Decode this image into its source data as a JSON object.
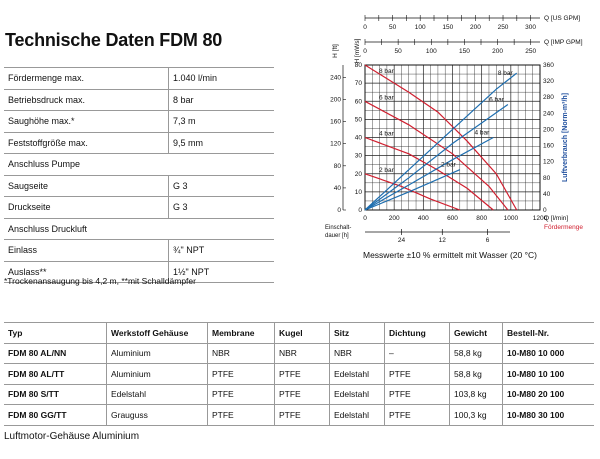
{
  "title": "Technische Daten FDM 80",
  "specs": [
    {
      "label": "Fördermenge max.",
      "value": "1.040 l/min"
    },
    {
      "label": "Betriebsdruck max.",
      "value": "8 bar"
    },
    {
      "label": "Saughöhe max.*",
      "value": "7,3 m"
    },
    {
      "label": "Feststoffgröße max.",
      "value": "9,5 mm"
    },
    {
      "label": "Anschluss Pumpe",
      "value": ""
    },
    {
      "label": "Saugseite",
      "value": "G 3"
    },
    {
      "label": "Druckseite",
      "value": "G 3"
    },
    {
      "label": "Anschluss Druckluft",
      "value": ""
    },
    {
      "label": "Einlass",
      "value": "¾\" NPT"
    },
    {
      "label": "Auslass**",
      "value": "1½\" NPT"
    }
  ],
  "footnote": "*Trockenansaugung bis 4,2 m, **mit Schalldämpfer",
  "types_table": {
    "headers": [
      "Typ",
      "Werkstoff Gehäuse",
      "Membrane",
      "Kugel",
      "Sitz",
      "Dichtung",
      "Gewicht",
      "Bestell-Nr."
    ],
    "rows": [
      [
        "FDM 80 AL/NN",
        "Aluminium",
        "NBR",
        "NBR",
        "NBR",
        "–",
        "58,8 kg",
        "10-M80 10 000"
      ],
      [
        "FDM 80 AL/TT",
        "Aluminium",
        "PTFE",
        "PTFE",
        "Edelstahl",
        "PTFE",
        "58,8 kg",
        "10-M80 10 100"
      ],
      [
        "FDM 80 S/TT",
        "Edelstahl",
        "PTFE",
        "PTFE",
        "Edelstahl",
        "PTFE",
        "103,8 kg",
        "10-M80 20 100"
      ],
      [
        "FDM 80 GG/TT",
        "Grauguss",
        "PTFE",
        "PTFE",
        "Edelstahl",
        "PTFE",
        "100,3 kg",
        "10-M80 30 100"
      ]
    ]
  },
  "footer": "Luftmotor-Gehäuse Aluminium",
  "chart_data": {
    "type": "line",
    "caption": "Messwerte ±10 % ermittelt mit Wasser (20 °C)",
    "x_label": "Q [l/min]",
    "x_unit_label": "Fördermenge",
    "x_range": [
      0,
      1200
    ],
    "x_ticks": [
      "0",
      "200",
      "400",
      "600",
      "800",
      "1000",
      "1200"
    ],
    "y_left_labels": [
      "H [ft]",
      "H [mWs]"
    ],
    "y_left_range": [
      0,
      80
    ],
    "y_left_ticks": [
      "0",
      "10",
      "20",
      "30",
      "40",
      "50",
      "60",
      "70",
      "80"
    ],
    "y_ft_ticks": [
      "0",
      "40",
      "80",
      "120",
      "160",
      "200",
      "240"
    ],
    "y_right_label": "Luftverbrauch [Norm-m³/h]",
    "y_right_range": [
      0,
      360
    ],
    "y_right_ticks": [
      "0",
      "40",
      "80",
      "120",
      "160",
      "200",
      "240",
      "280",
      "320",
      "360"
    ],
    "top_axes": [
      {
        "label": "Q [US GPM]",
        "ticks": [
          "0",
          "50",
          "100",
          "150",
          "200",
          "250",
          "300"
        ]
      },
      {
        "label": "Q [IMP GPM]",
        "ticks": [
          "0",
          "50",
          "100",
          "150",
          "200",
          "250"
        ]
      }
    ],
    "duty_label": "Einschalt-dauer [h]",
    "duty_ticks": [
      "24",
      "12",
      "6"
    ],
    "series_flow": [
      {
        "name": "8 bar",
        "color": "#d01f2f",
        "x": [
          0,
          300,
          500,
          700,
          900,
          1040
        ],
        "y": [
          80,
          65,
          54,
          38,
          20,
          0
        ]
      },
      {
        "name": "6 bar",
        "color": "#d01f2f",
        "x": [
          0,
          300,
          600,
          850,
          980
        ],
        "y": [
          60,
          47,
          31,
          13,
          0
        ]
      },
      {
        "name": "4 bar",
        "color": "#d01f2f",
        "x": [
          0,
          300,
          500,
          700,
          880
        ],
        "y": [
          40,
          31,
          22,
          12,
          0
        ]
      },
      {
        "name": "2 bar",
        "color": "#d01f2f",
        "x": [
          0,
          250,
          450,
          650
        ],
        "y": [
          20,
          13,
          6,
          0
        ]
      }
    ],
    "series_air": [
      {
        "name": "8 bar",
        "color": "#1f6fb0",
        "x": [
          0,
          300,
          600,
          900,
          1040
        ],
        "y": [
          0,
          100,
          200,
          300,
          340
        ]
      },
      {
        "name": "6 bar",
        "color": "#1f6fb0",
        "x": [
          0,
          300,
          600,
          980
        ],
        "y": [
          0,
          80,
          165,
          262
        ]
      },
      {
        "name": "4 bar",
        "color": "#1f6fb0",
        "x": [
          0,
          300,
          600,
          880
        ],
        "y": [
          0,
          62,
          125,
          180
        ]
      },
      {
        "name": "2 bar",
        "color": "#1f6fb0",
        "x": [
          0,
          300,
          650
        ],
        "y": [
          0,
          45,
          100
        ]
      }
    ]
  }
}
